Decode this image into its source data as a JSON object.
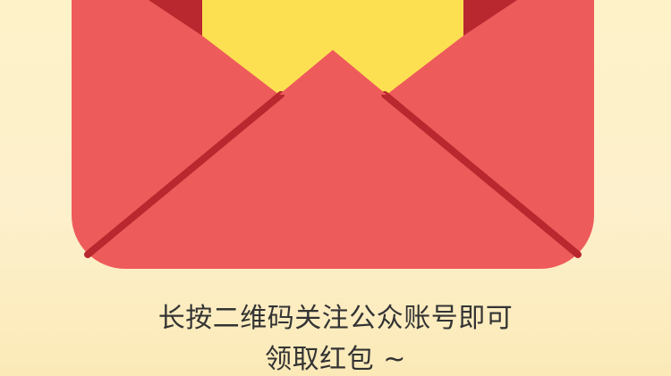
{
  "colors": {
    "background": "#fdf0cc",
    "envelope_red": "#ee5b5b",
    "envelope_dark_red": "#b8282e",
    "letter_yellow": "#fde052",
    "text": "#333333"
  },
  "envelope": {
    "icon": "red-envelope-icon"
  },
  "instruction": {
    "line1": "长按二维码关注公众账号即可",
    "line2": "领取红包 ~"
  }
}
